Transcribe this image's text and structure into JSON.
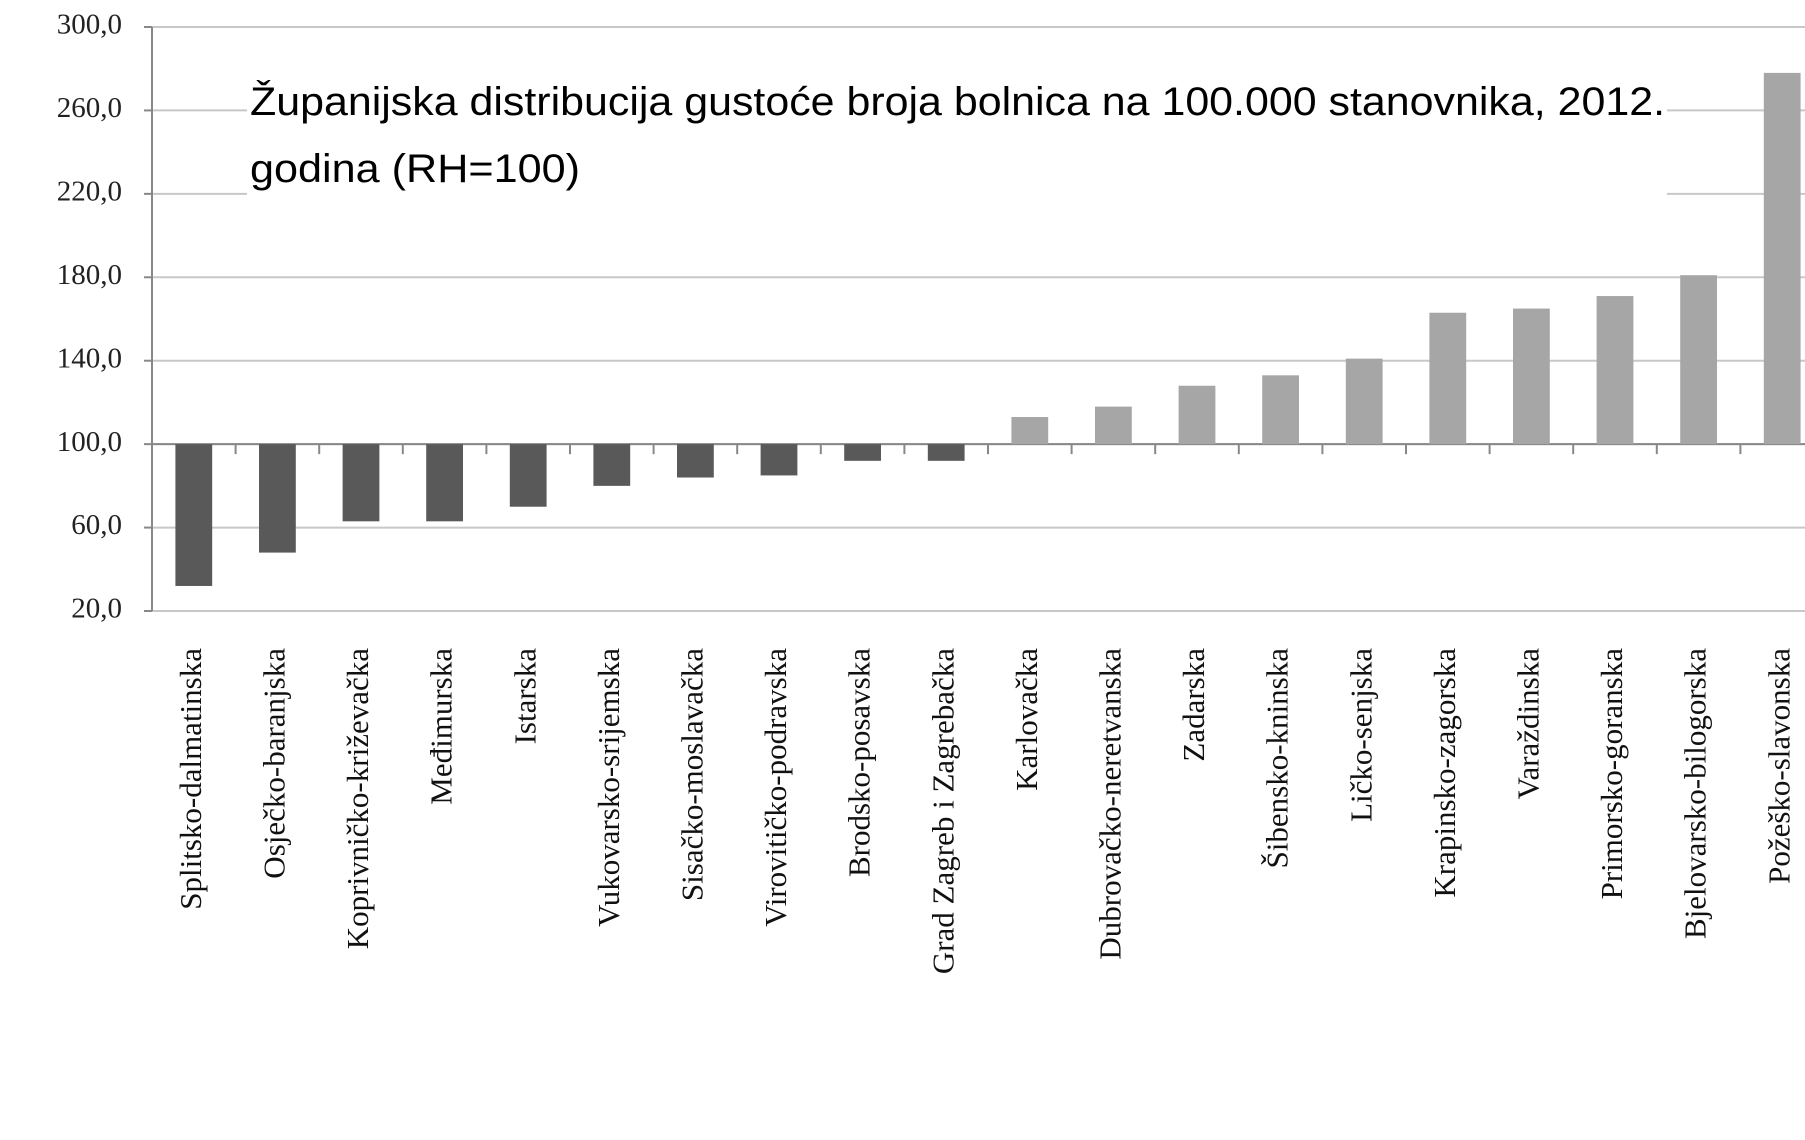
{
  "chart_data": {
    "type": "bar",
    "title": [
      "Županijska distribucija gustoće broja bolnica na 100.000 stanovnika, 2012.",
      "godina (RH=100)"
    ],
    "categories": [
      "Splitsko-dalmatinska",
      "Osječko-baranjska",
      "Koprivničko-križevačka",
      "Međimurska",
      "Istarska",
      "Vukovarsko-srijemska",
      "Sisačko-moslavačka",
      "Virovitičko-podravska",
      "Brodsko-posavska",
      "Grad Zagreb i Zagrebačka",
      "Karlovačka",
      "Dubrovačko-neretvanska",
      "Zadarska",
      "Šibensko-kninska",
      "Ličko-senjska",
      "Krapinsko-zagorska",
      "Varaždinska",
      "Primorsko-goranska",
      "Bjelovarsko-bilogorska",
      "Požeško-slavonska"
    ],
    "values": [
      32,
      48,
      63,
      63,
      70,
      80,
      84,
      85,
      92,
      92,
      113,
      118,
      128,
      133,
      141,
      163,
      165,
      171,
      181,
      278
    ],
    "base": 100,
    "color_below": "#595959",
    "color_above": "#a6a6a6",
    "ylim": [
      20,
      300
    ],
    "yticks": [
      {
        "value": 20,
        "label": "20,0"
      },
      {
        "value": 60,
        "label": "60,0"
      },
      {
        "value": 100,
        "label": "100,0"
      },
      {
        "value": 140,
        "label": "140,0"
      },
      {
        "value": 180,
        "label": "180,0"
      },
      {
        "value": 220,
        "label": "220,0"
      },
      {
        "value": 260,
        "label": "260,0"
      },
      {
        "value": 300,
        "label": "300,0"
      }
    ],
    "grid": true
  }
}
